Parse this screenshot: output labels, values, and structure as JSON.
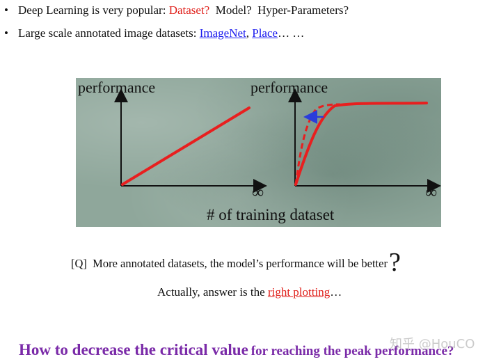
{
  "bullets": [
    {
      "marker": "•",
      "text_before": "Deep Learning is very popular: ",
      "highlight": "Dataset?",
      "text_after": "  Model?  Hyper-Parameters?"
    },
    {
      "marker": "•",
      "text_before": "Large scale annotated image datasets: ",
      "link1": "ImageNet",
      "sep": ", ",
      "link2": "Place",
      "text_after": "… …"
    }
  ],
  "figure": {
    "left_ylabel": "performance",
    "right_ylabel": "performance",
    "left_inf": "∞",
    "right_inf": "∞",
    "xlabel": "# of training dataset",
    "colors": {
      "curve": "#e81f1f",
      "arrow": "#2a3ddb",
      "background": "#8fa79b"
    }
  },
  "question": {
    "prefix": "[Q]  More annotated datasets, the model’s performance will be better",
    "mark": "?"
  },
  "answer": {
    "before": "Actually, answer is the ",
    "link": "right plotting",
    "after": "…"
  },
  "bottom": {
    "big": "How to decrease the critical value",
    "small": "for reaching the peak performance?"
  },
  "watermark": "知乎 @HouCO"
}
